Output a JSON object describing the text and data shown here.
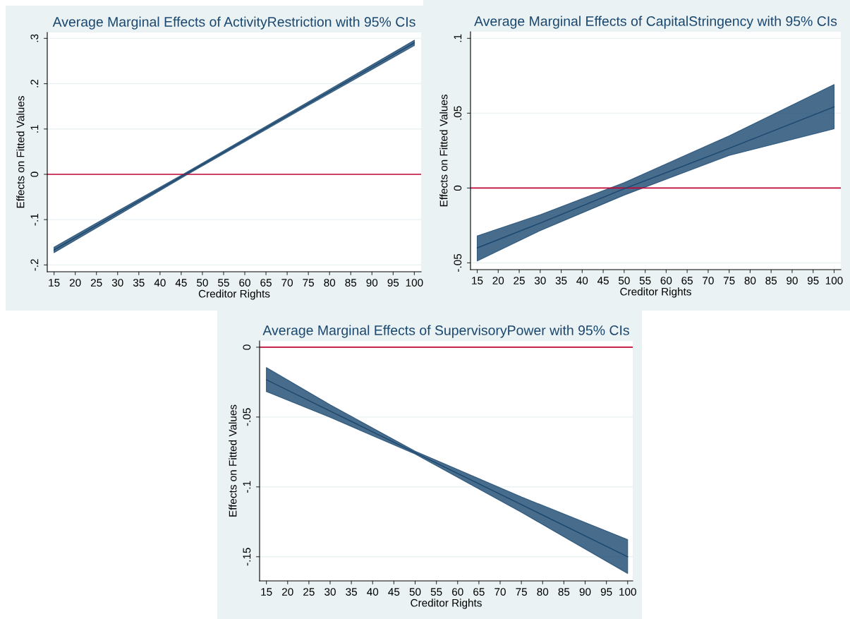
{
  "chart_data": [
    {
      "type": "line",
      "title": "Average Marginal Effects of ActivityRestriction with 95% CIs",
      "xlabel": "Creditor Rights",
      "ylabel": "Effects on Fitted Values",
      "x": [
        15,
        30,
        46,
        75,
        100
      ],
      "series": [
        {
          "color": "#1a476f",
          "values": [
            -0.167,
            -0.086,
            0.0,
            0.156,
            0.29
          ],
          "lower": [
            -0.173,
            -0.091,
            -0.003,
            0.152,
            0.284
          ],
          "upper": [
            -0.161,
            -0.081,
            0.003,
            0.16,
            0.296
          ]
        }
      ],
      "xlim": [
        13.4,
        101.6
      ],
      "ylim": [
        -0.215,
        0.313
      ],
      "xticks": [
        15,
        20,
        25,
        30,
        35,
        40,
        45,
        50,
        55,
        60,
        65,
        70,
        75,
        80,
        85,
        90,
        95,
        100
      ],
      "yticks": [
        {
          "value": -0.2,
          "label": "-.2"
        },
        {
          "value": -0.1,
          "label": "-.1"
        },
        0,
        {
          "value": 0.1,
          "label": ".1"
        },
        {
          "value": 0.2,
          "label": ".2"
        },
        {
          "value": 0.3,
          "label": ".3"
        }
      ],
      "ref_lines": [
        {
          "axis": "y",
          "value": 0,
          "color": "#c10534"
        }
      ],
      "grid": "y"
    },
    {
      "type": "line",
      "title": "Average Marginal Effects of CapitalStringency with 95% CIs",
      "xlabel": "Creditor Rights",
      "ylabel": "Effects on Fitted Values",
      "x": [
        15,
        30,
        50,
        75,
        100
      ],
      "series": [
        {
          "color": "#1a476f",
          "values": [
            -0.04,
            -0.0234,
            -0.0005,
            0.0265,
            0.0542
          ],
          "lower": [
            -0.0487,
            -0.0284,
            -0.0047,
            0.0218,
            0.0396
          ],
          "upper": [
            -0.032,
            -0.0178,
            0.0036,
            0.0349,
            0.0691
          ]
        }
      ],
      "xlim": [
        13.4,
        101.6
      ],
      "ylim": [
        -0.0545,
        0.1044
      ],
      "xticks": [
        15,
        20,
        25,
        30,
        35,
        40,
        45,
        50,
        55,
        60,
        65,
        70,
        75,
        80,
        85,
        90,
        95,
        100
      ],
      "yticks": [
        {
          "value": -0.05,
          "label": "-.05"
        },
        0,
        {
          "value": 0.05,
          "label": ".05"
        },
        {
          "value": 0.1,
          "label": ".1"
        }
      ],
      "ref_lines": [
        {
          "axis": "y",
          "value": 0,
          "color": "#c10534"
        }
      ],
      "grid": "y"
    },
    {
      "type": "line",
      "title": "Average Marginal Effects of SupervisoryPower with 95% CIs",
      "xlabel": "Creditor Rights",
      "ylabel": "Effects on Fitted Values",
      "x": [
        15,
        30,
        50,
        75,
        100
      ],
      "series": [
        {
          "color": "#1a476f",
          "values": [
            -0.0233,
            -0.0457,
            -0.0755,
            -0.1127,
            -0.15
          ],
          "lower": [
            -0.0317,
            -0.0502,
            -0.0765,
            -0.1182,
            -0.162
          ],
          "upper": [
            -0.0146,
            -0.0412,
            -0.0745,
            -0.1072,
            -0.1377
          ]
        }
      ],
      "xlim": [
        13.4,
        101.2
      ],
      "ylim": [
        -0.1673,
        0.0045
      ],
      "xticks": [
        15,
        20,
        25,
        30,
        35,
        40,
        45,
        50,
        55,
        60,
        65,
        70,
        75,
        80,
        85,
        90,
        95,
        100
      ],
      "yticks": [
        {
          "value": -0.15,
          "label": "-.15"
        },
        {
          "value": -0.1,
          "label": "-.1"
        },
        {
          "value": -0.05,
          "label": "-.05"
        },
        0
      ],
      "ref_lines": [
        {
          "axis": "y",
          "value": 0,
          "color": "#c10534"
        }
      ],
      "grid": "y"
    }
  ]
}
